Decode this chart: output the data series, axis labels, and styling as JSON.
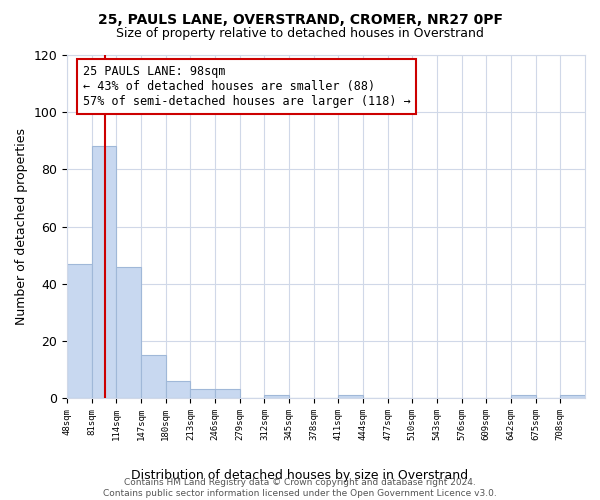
{
  "title": "25, PAULS LANE, OVERSTRAND, CROMER, NR27 0PF",
  "subtitle": "Size of property relative to detached houses in Overstrand",
  "xlabel": "Distribution of detached houses by size in Overstrand",
  "ylabel": "Number of detached properties",
  "bar_edges": [
    48,
    81,
    114,
    147,
    180,
    213,
    246,
    279,
    312,
    345,
    378,
    411,
    444,
    477,
    510,
    543,
    576,
    609,
    642,
    675,
    708,
    741
  ],
  "bar_heights": [
    47,
    88,
    46,
    15,
    6,
    3,
    3,
    0,
    1,
    0,
    0,
    1,
    0,
    0,
    0,
    0,
    0,
    0,
    1,
    0,
    1
  ],
  "bar_color": "#c8d8f0",
  "bar_edge_color": "#a0b8d8",
  "vline_x": 98,
  "vline_color": "#cc0000",
  "ylim": [
    0,
    120
  ],
  "annotation_box_text": "25 PAULS LANE: 98sqm\n← 43% of detached houses are smaller (88)\n57% of semi-detached houses are larger (118) →",
  "footer_text": "Contains HM Land Registry data © Crown copyright and database right 2024.\nContains public sector information licensed under the Open Government Licence v3.0.",
  "background_color": "#ffffff",
  "grid_color": "#d0d8e8",
  "tick_labels": [
    "48sqm",
    "81sqm",
    "114sqm",
    "147sqm",
    "180sqm",
    "213sqm",
    "246sqm",
    "279sqm",
    "312sqm",
    "345sqm",
    "378sqm",
    "411sqm",
    "444sqm",
    "477sqm",
    "510sqm",
    "543sqm",
    "576sqm",
    "609sqm",
    "642sqm",
    "675sqm",
    "708sqm"
  ]
}
